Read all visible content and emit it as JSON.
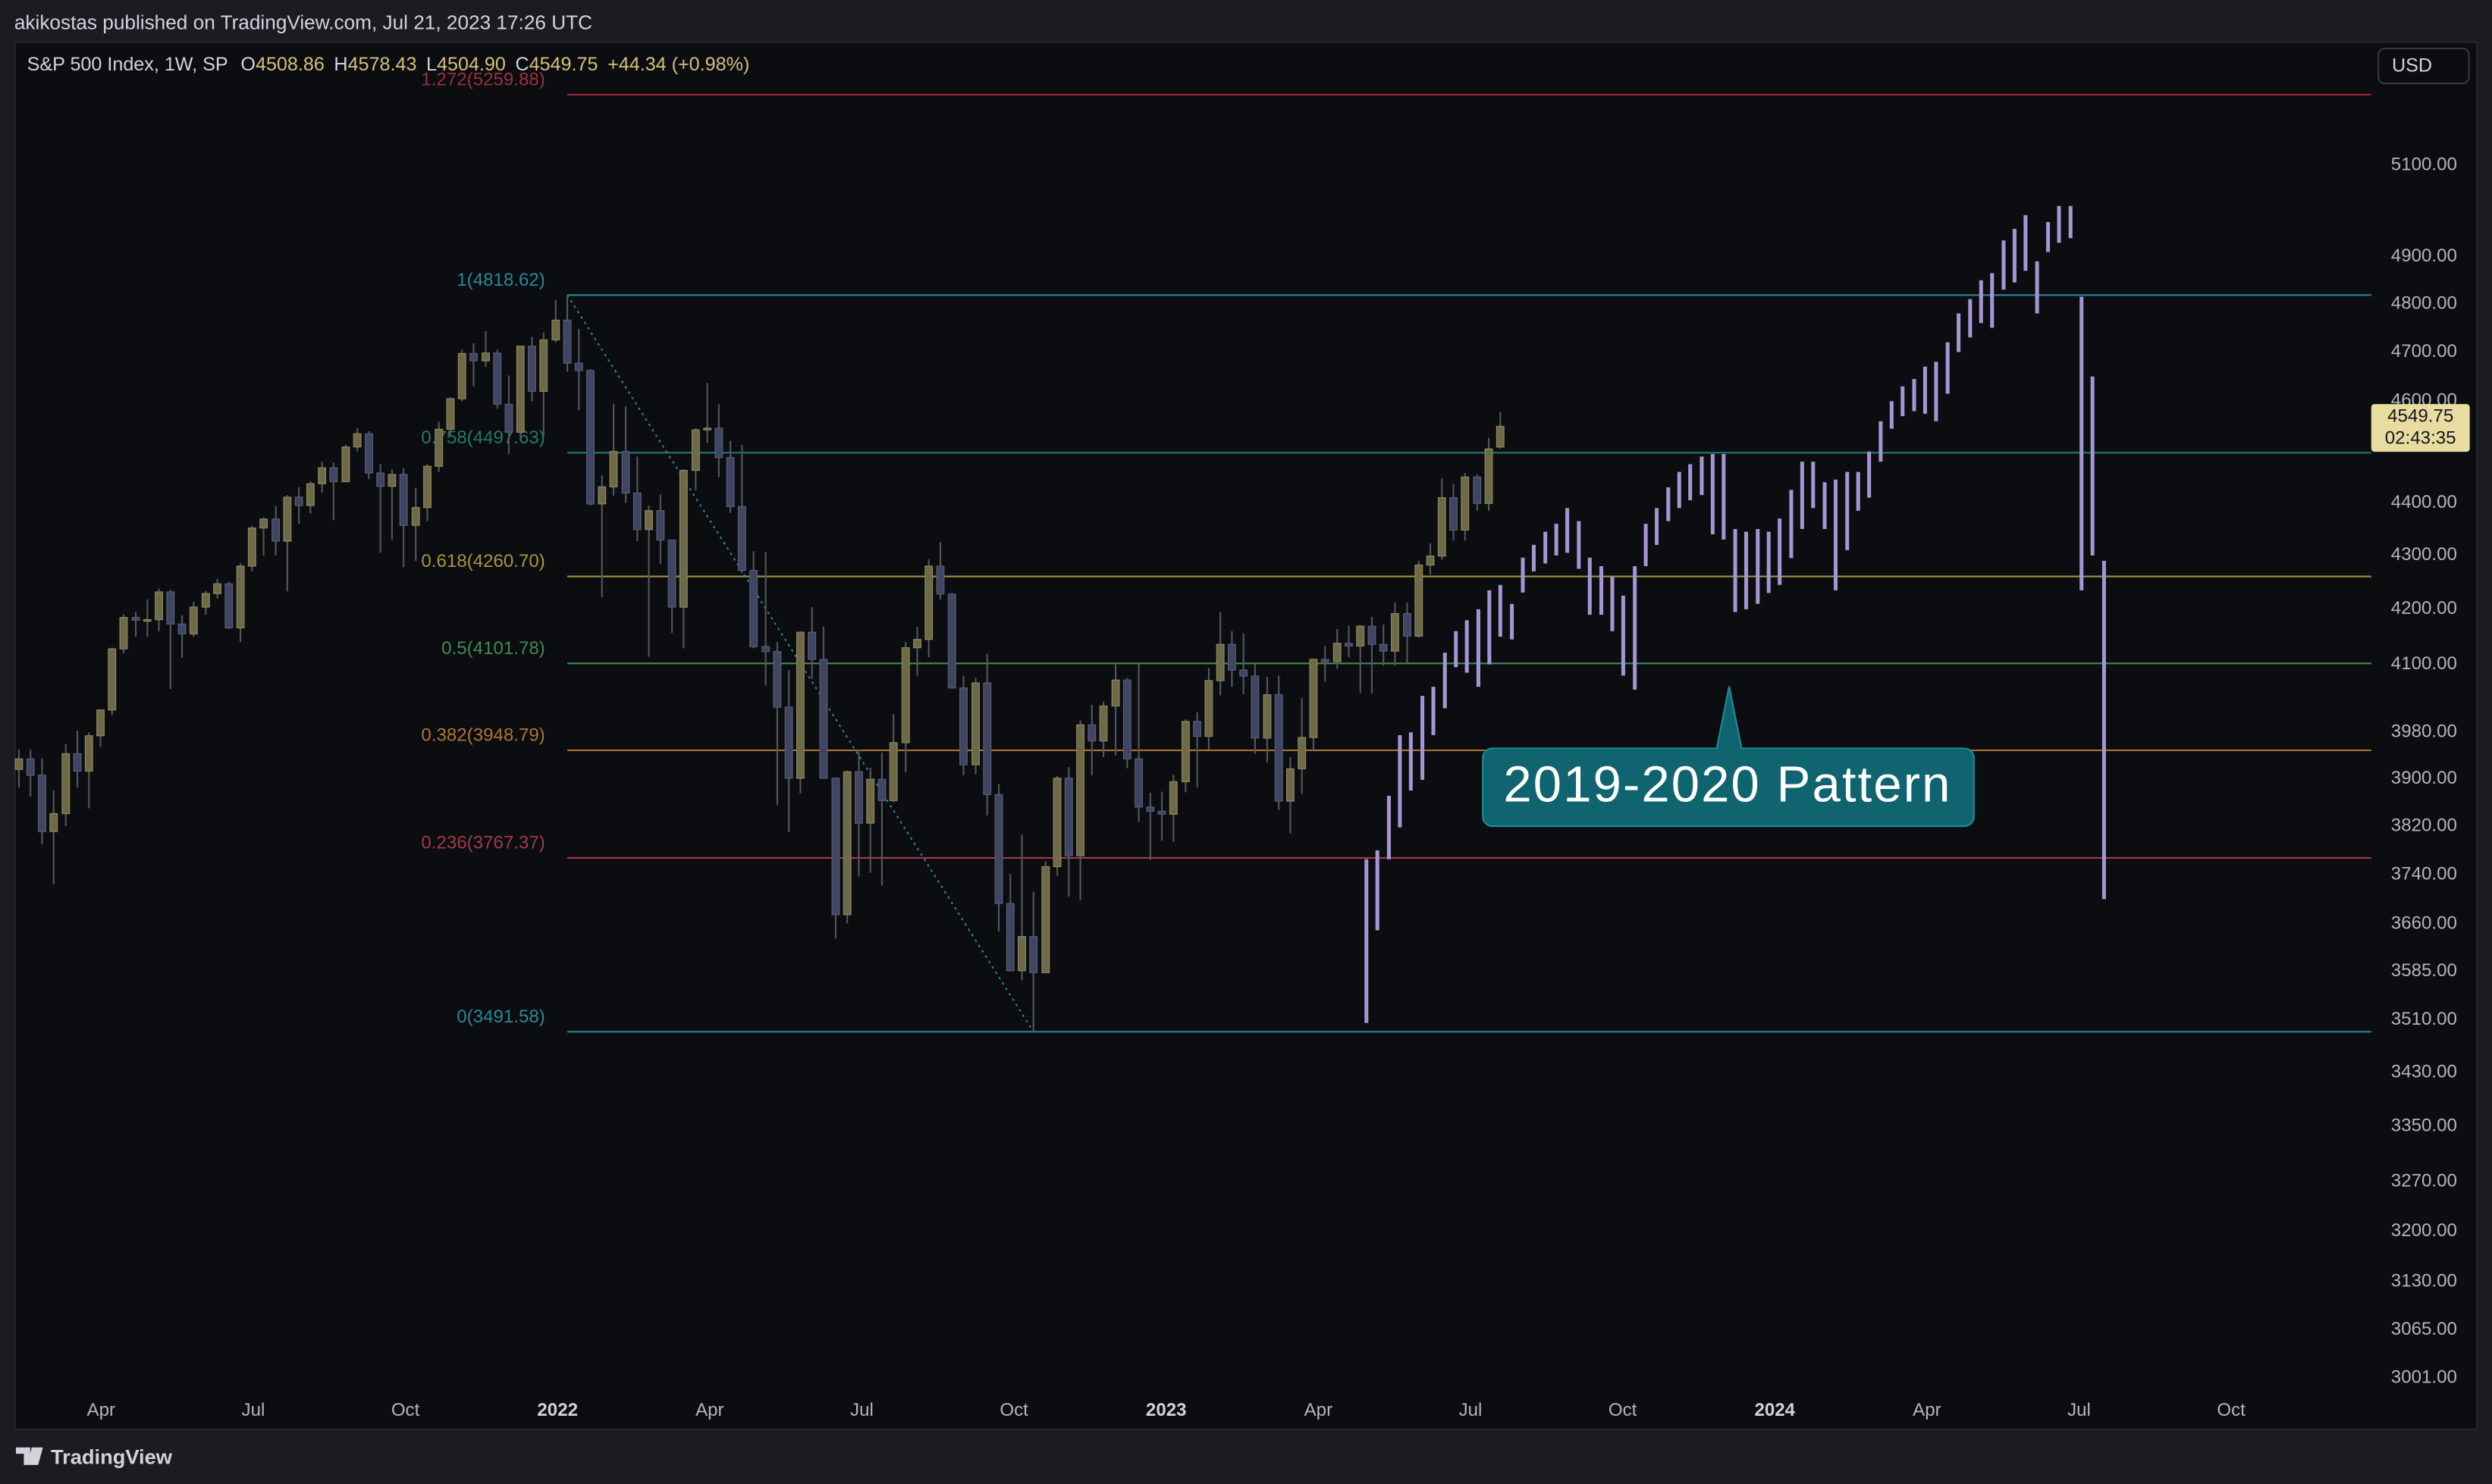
{
  "header": "akikostas published on TradingView.com, Jul 21, 2023 17:26 UTC",
  "currency": "USD",
  "footer_brand": "TradingView",
  "chart_data": {
    "type": "candlestick",
    "legend": {
      "symbol": "S&P 500 Index, 1W, SP",
      "fields": [
        {
          "key": "O",
          "value": "4508.86"
        },
        {
          "key": "H",
          "value": "4578.43"
        },
        {
          "key": "L",
          "value": "4504.90"
        },
        {
          "key": "C",
          "value": "4549.75"
        }
      ],
      "change": "+44.34 (+0.98%)"
    },
    "log_scale": true,
    "grid": false,
    "xlim": [
      2021.11,
      2024.98
    ],
    "ylim": [
      2985,
      5384
    ],
    "xticks": [
      {
        "value": 2021.25,
        "label": "Apr"
      },
      {
        "value": 2021.5,
        "label": "Jul"
      },
      {
        "value": 2021.75,
        "label": "Oct"
      },
      2022,
      {
        "value": 2022.25,
        "label": "Apr"
      },
      {
        "value": 2022.5,
        "label": "Jul"
      },
      {
        "value": 2022.75,
        "label": "Oct"
      },
      2023,
      {
        "value": 2023.25,
        "label": "Apr"
      },
      {
        "value": 2023.5,
        "label": "Jul"
      },
      {
        "value": 2023.75,
        "label": "Oct"
      },
      2024,
      {
        "value": 2024.25,
        "label": "Apr"
      },
      {
        "value": 2024.5,
        "label": "Jul"
      },
      {
        "value": 2024.75,
        "label": "Oct"
      }
    ],
    "yticks": [
      {
        "value": 5100,
        "label": "5100.00"
      },
      {
        "value": 4900,
        "label": "4900.00"
      },
      {
        "value": 4800,
        "label": "4800.00"
      },
      {
        "value": 4700,
        "label": "4700.00"
      },
      {
        "value": 4600,
        "label": "4600.00"
      },
      {
        "value": 4400,
        "label": "4400.00"
      },
      {
        "value": 4300,
        "label": "4300.00"
      },
      {
        "value": 4200,
        "label": "4200.00"
      },
      {
        "value": 4100,
        "label": "4100.00"
      },
      {
        "value": 3980,
        "label": "3980.00"
      },
      {
        "value": 3900,
        "label": "3900.00"
      },
      {
        "value": 3820,
        "label": "3820.00"
      },
      {
        "value": 3740,
        "label": "3740.00"
      },
      {
        "value": 3660,
        "label": "3660.00"
      },
      {
        "value": 3585,
        "label": "3585.00"
      },
      {
        "value": 3510,
        "label": "3510.00"
      },
      {
        "value": 3430,
        "label": "3430.00"
      },
      {
        "value": 3350,
        "label": "3350.00"
      },
      {
        "value": 3270,
        "label": "3270.00"
      },
      {
        "value": 3200,
        "label": "3200.00"
      },
      {
        "value": 3130,
        "label": "3130.00"
      },
      {
        "value": 3065,
        "label": "3065.00"
      },
      {
        "value": 3001,
        "label": "3001.00"
      }
    ],
    "up_color": "#6e6a48",
    "down_color": "#404561",
    "wick_color": "#55565f",
    "x": [
      2021.115,
      2021.134,
      2021.153,
      2021.172,
      2021.192,
      2021.211,
      2021.23,
      2021.249,
      2021.268,
      2021.287,
      2021.307,
      2021.326,
      2021.345,
      2021.364,
      2021.383,
      2021.402,
      2021.422,
      2021.441,
      2021.46,
      2021.479,
      2021.498,
      2021.517,
      2021.537,
      2021.556,
      2021.575,
      2021.594,
      2021.613,
      2021.632,
      2021.652,
      2021.671,
      2021.69,
      2021.709,
      2021.728,
      2021.747,
      2021.767,
      2021.786,
      2021.805,
      2021.824,
      2021.843,
      2021.862,
      2021.882,
      2021.901,
      2021.92,
      2021.939,
      2021.958,
      2021.977,
      2021.997,
      2022.016,
      2022.035,
      2022.054,
      2022.073,
      2022.092,
      2022.112,
      2022.131,
      2022.15,
      2022.169,
      2022.188,
      2022.207,
      2022.227,
      2022.246,
      2022.265,
      2022.284,
      2022.303,
      2022.322,
      2022.342,
      2022.361,
      2022.38,
      2022.399,
      2022.418,
      2022.437,
      2022.457,
      2022.476,
      2022.495,
      2022.514,
      2022.533,
      2022.552,
      2022.572,
      2022.591,
      2022.61,
      2022.629,
      2022.648,
      2022.667,
      2022.687,
      2022.706,
      2022.725,
      2022.744,
      2022.763,
      2022.782,
      2022.802,
      2022.821,
      2022.84,
      2022.859,
      2022.878,
      2022.897,
      2022.917,
      2022.936,
      2022.955,
      2022.974,
      2022.993,
      2023.012,
      2023.032,
      2023.051,
      2023.07,
      2023.089,
      2023.108,
      2023.127,
      2023.146,
      2023.166,
      2023.185,
      2023.204,
      2023.223,
      2023.242,
      2023.261,
      2023.281,
      2023.3,
      2023.319,
      2023.338,
      2023.357,
      2023.376,
      2023.396,
      2023.415,
      2023.434,
      2023.453,
      2023.472,
      2023.491,
      2023.511,
      2023.53,
      2023.549
    ],
    "open": [
      3916,
      3934,
      3906,
      3811,
      3841,
      3943,
      3913,
      3974,
      4019,
      4128,
      4185,
      4180,
      4181,
      4232,
      4173,
      4155,
      4204,
      4229,
      4247,
      4166,
      4280,
      4352,
      4369,
      4327,
      4411,
      4395,
      4437,
      4468,
      4441,
      4509,
      4535,
      4458,
      4432,
      4455,
      4357,
      4391,
      4471,
      4544,
      4605,
      4697,
      4682,
      4698,
      4594,
      4538,
      4712,
      4620,
      4725,
      4766,
      4677,
      4662,
      4398,
      4431,
      4500,
      4419,
      4349,
      4385,
      4329,
      4204,
      4463,
      4543,
      4546,
      4488,
      4393,
      4272,
      4132,
      4123,
      4024,
      3901,
      4158,
      4109,
      3901,
      3675,
      3912,
      3825,
      3899,
      3863,
      3962,
      4130,
      4145,
      4280,
      4228,
      4058,
      3924,
      4067,
      3873,
      3693,
      3586,
      3640,
      3583,
      3753,
      3901,
      3771,
      3993,
      3965,
      4026,
      4072,
      3934,
      3852,
      3845,
      3840,
      3895,
      3999,
      3973,
      4071,
      4136,
      4090,
      4079,
      3970,
      4046,
      3862,
      3917,
      3971,
      4109,
      4105,
      4138,
      4133,
      4169,
      4136,
      4124,
      4192,
      4151,
      4282,
      4299,
      4410,
      4348,
      4450,
      4399,
      4508.86
    ],
    "high": [
      3950,
      3950,
      3935,
      3880,
      3960,
      3983,
      3980,
      4020,
      4130,
      4191,
      4195,
      4218,
      4238,
      4236,
      4189,
      4214,
      4234,
      4256,
      4251,
      4286,
      4356,
      4372,
      4394,
      4415,
      4430,
      4442,
      4480,
      4478,
      4513,
      4546,
      4540,
      4475,
      4465,
      4467,
      4429,
      4475,
      4559,
      4608,
      4705,
      4718,
      4743,
      4705,
      4652,
      4713,
      4731,
      4740,
      4808,
      4818.62,
      4748,
      4665,
      4453,
      4595,
      4590,
      4490,
      4395,
      4416,
      4330,
      4465,
      4546,
      4637,
      4594,
      4521,
      4513,
      4308,
      4307,
      4140,
      4090,
      4160,
      4204,
      4168,
      3902,
      3914,
      3950,
      3919,
      3945,
      4012,
      4140,
      4168,
      4293,
      4325,
      4230,
      4080,
      4076,
      4119,
      3891,
      3741,
      3806,
      3712,
      3762,
      3905,
      3920,
      4001,
      4028,
      4034,
      4100,
      4076,
      4101,
      3876,
      3878,
      3907,
      4003,
      4015,
      4094,
      4195,
      4160,
      4156,
      4104,
      4078,
      4080,
      3937,
      4040,
      4110,
      4133,
      4164,
      4170,
      4171,
      4186,
      4172,
      4213,
      4212,
      4290,
      4323,
      4448,
      4437,
      4458,
      4455,
      4527,
      4578.43
    ],
    "low": [
      3885,
      3870,
      3790,
      3724,
      3820,
      3885,
      3850,
      3955,
      4010,
      4120,
      4150,
      4150,
      4160,
      4056,
      4112,
      4150,
      4190,
      4220,
      4164,
      4140,
      4270,
      4300,
      4300,
      4233,
      4360,
      4380,
      4420,
      4367,
      4440,
      4500,
      4446,
      4305,
      4330,
      4278,
      4290,
      4365,
      4460,
      4530,
      4600,
      4630,
      4670,
      4585,
      4495,
      4530,
      4600,
      4530,
      4720,
      4660,
      4582,
      4395,
      4222,
      4414,
      4400,
      4327,
      4114,
      4284,
      4157,
      4129,
      4424,
      4517,
      4450,
      4381,
      4267,
      4129,
      4062,
      3855,
      3810,
      3875,
      4074,
      3900,
      3637,
      3661,
      3737,
      3743,
      3722,
      3860,
      3911,
      4080,
      4113,
      4218,
      4057,
      3906,
      3908,
      3838,
      3648,
      3585,
      3571,
      3491.58,
      3590,
      3738,
      3704,
      3698,
      3906,
      3937,
      3940,
      3918,
      3827,
      3764,
      3796,
      3794,
      3877,
      3885,
      3950,
      4045,
      4060,
      4047,
      3943,
      3928,
      3847,
      3808,
      3874,
      3949,
      4069,
      4092,
      4113,
      4049,
      4048,
      4098,
      4098,
      4103,
      4148,
      4264,
      4292,
      4328,
      4328,
      4385,
      4385,
      4504.9
    ],
    "close": [
      3934,
      3906,
      3811,
      3841,
      3943,
      3913,
      3974,
      4019,
      4128,
      4185,
      4180,
      4181,
      4232,
      4173,
      4155,
      4204,
      4229,
      4247,
      4166,
      4280,
      4352,
      4369,
      4327,
      4411,
      4395,
      4437,
      4468,
      4441,
      4509,
      4535,
      4458,
      4432,
      4455,
      4357,
      4391,
      4471,
      4544,
      4605,
      4697,
      4682,
      4698,
      4594,
      4538,
      4712,
      4620,
      4725,
      4766,
      4677,
      4662,
      4398,
      4431,
      4500,
      4419,
      4349,
      4385,
      4329,
      4204,
      4463,
      4543,
      4546,
      4488,
      4393,
      4272,
      4132,
      4123,
      4024,
      3901,
      4158,
      4109,
      3901,
      3675,
      3912,
      3825,
      3899,
      3863,
      3962,
      4130,
      4145,
      4280,
      4228,
      4058,
      3924,
      4067,
      3873,
      3693,
      3586,
      3640,
      3583,
      3753,
      3901,
      3771,
      3993,
      3965,
      4026,
      4072,
      3934,
      3852,
      3845,
      3840,
      3895,
      3999,
      3973,
      4071,
      4136,
      4090,
      4079,
      3970,
      4046,
      3862,
      3917,
      3971,
      4109,
      4105,
      4138,
      4133,
      4169,
      4136,
      4124,
      4192,
      4151,
      4282,
      4299,
      4410,
      4348,
      4450,
      4399,
      4505,
      4549.75
    ],
    "countdown": "02:43:35",
    "fib_levels": [
      {
        "label": "1.272(5259.88)",
        "value": 5259.88,
        "color": "#9a3040"
      },
      {
        "label": "1(4818.62)",
        "value": 4818.62,
        "color": "#2a8796"
      },
      {
        "label": "0.758(4497.63)",
        "value": 4497.63,
        "color": "#22796a"
      },
      {
        "label": "0.618(4260.70)",
        "value": 4260.7,
        "color": "#a59540"
      },
      {
        "label": "0.5(4101.78)",
        "value": 4101.78,
        "color": "#468656"
      },
      {
        "label": "0.382(3948.79)",
        "value": 3948.79,
        "color": "#ad7532"
      },
      {
        "label": "0.236(3767.37)",
        "value": 3767.37,
        "color": "#a23a48"
      },
      {
        "label": "0(3491.58)",
        "value": 3491.58,
        "color": "#2a8796"
      }
    ],
    "annotation": "2019-2020 Pattern",
    "projection": {
      "color": "#a595d2",
      "x": [
        2023.329,
        2023.347,
        2023.366,
        2023.384,
        2023.402,
        2023.421,
        2023.439,
        2023.458,
        2023.476,
        2023.494,
        2023.513,
        2023.531,
        2023.549,
        2023.568,
        2023.586,
        2023.604,
        2023.623,
        2023.641,
        2023.659,
        2023.678,
        2023.696,
        2023.715,
        2023.733,
        2023.751,
        2023.77,
        2023.788,
        2023.806,
        2023.825,
        2023.843,
        2023.861,
        2023.88,
        2023.898,
        2023.916,
        2023.935,
        2023.953,
        2023.972,
        2023.99,
        2024.008,
        2024.027,
        2024.045,
        2024.063,
        2024.082,
        2024.1,
        2024.119,
        2024.137,
        2024.155,
        2024.174,
        2024.192,
        2024.21,
        2024.229,
        2024.247,
        2024.265,
        2024.284,
        2024.302,
        2024.321,
        2024.339,
        2024.357,
        2024.376,
        2024.394,
        2024.412,
        2024.431,
        2024.449,
        2024.467,
        2024.486,
        2024.504,
        2024.522,
        2024.541
      ],
      "low": [
        3505,
        3650,
        3765,
        3818,
        3880,
        3898,
        3975,
        4022,
        4095,
        4085,
        4060,
        4100,
        4150,
        4145,
        4231,
        4270,
        4285,
        4300,
        4305,
        4275,
        4190,
        4190,
        4160,
        4080,
        4055,
        4280,
        4320,
        4365,
        4390,
        4405,
        4415,
        4340,
        4330,
        4195,
        4200,
        4210,
        4230,
        4245,
        4295,
        4350,
        4390,
        4350,
        4235,
        4310,
        4385,
        4410,
        4480,
        4545,
        4570,
        4580,
        4575,
        4560,
        4615,
        4700,
        4730,
        4760,
        4750,
        4830,
        4845,
        4870,
        4780,
        4910,
        4930,
        4940,
        4235,
        4300,
        3700
      ],
      "high": [
        3765,
        3780,
        3871,
        3975,
        3980,
        4044,
        4060,
        4121,
        4160,
        4180,
        4200,
        4235,
        4245,
        4210,
        4296,
        4320,
        4345,
        4360,
        4390,
        4365,
        4296,
        4280,
        4260,
        4225,
        4280,
        4360,
        4390,
        4430,
        4460,
        4475,
        4490,
        4495,
        4495,
        4350,
        4345,
        4350,
        4345,
        4370,
        4425,
        4480,
        4480,
        4440,
        4445,
        4460,
        4460,
        4500,
        4560,
        4600,
        4630,
        4645,
        4670,
        4680,
        4720,
        4780,
        4810,
        4850,
        4865,
        4935,
        4960,
        4990,
        4890,
        4975,
        5010,
        5010,
        4815,
        4650,
        4290
      ]
    }
  }
}
